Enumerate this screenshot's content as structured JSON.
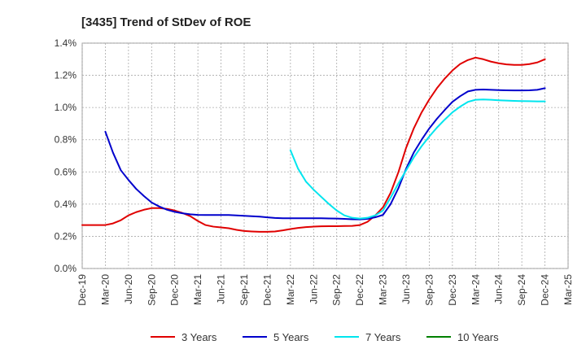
{
  "chart_data": {
    "type": "line",
    "title": "[3435]  Trend of StDev of ROE",
    "xlabel": "",
    "ylabel": "",
    "ylim": [
      0,
      1.4
    ],
    "yticks": [
      "0.0%",
      "0.2%",
      "0.4%",
      "0.6%",
      "0.8%",
      "1.0%",
      "1.2%",
      "1.4%"
    ],
    "xticks": [
      "Dec-19",
      "Mar-20",
      "Jun-20",
      "Sep-20",
      "Dec-20",
      "Mar-21",
      "Jun-21",
      "Sep-21",
      "Dec-21",
      "Mar-22",
      "Jun-22",
      "Sep-22",
      "Dec-22",
      "Mar-23",
      "Jun-23",
      "Sep-23",
      "Dec-23",
      "Mar-24",
      "Jun-24",
      "Sep-24",
      "Dec-24",
      "Mar-25"
    ],
    "grid": true,
    "legend_position": "bottom",
    "series": [
      {
        "name": "3 Years",
        "color": "#e00000",
        "points": [
          [
            0,
            0.27
          ],
          [
            0.33,
            0.27
          ],
          [
            0.67,
            0.27
          ],
          [
            1,
            0.27
          ],
          [
            1.33,
            0.28
          ],
          [
            1.67,
            0.3
          ],
          [
            2,
            0.33
          ],
          [
            2.33,
            0.35
          ],
          [
            2.67,
            0.365
          ],
          [
            3,
            0.375
          ],
          [
            3.33,
            0.375
          ],
          [
            3.67,
            0.37
          ],
          [
            4,
            0.36
          ],
          [
            4.33,
            0.345
          ],
          [
            4.67,
            0.325
          ],
          [
            5,
            0.295
          ],
          [
            5.33,
            0.27
          ],
          [
            5.67,
            0.26
          ],
          [
            6,
            0.255
          ],
          [
            6.33,
            0.25
          ],
          [
            6.67,
            0.24
          ],
          [
            7,
            0.233
          ],
          [
            7.33,
            0.23
          ],
          [
            7.67,
            0.228
          ],
          [
            8,
            0.228
          ],
          [
            8.33,
            0.23
          ],
          [
            8.67,
            0.237
          ],
          [
            9,
            0.245
          ],
          [
            9.33,
            0.252
          ],
          [
            9.67,
            0.257
          ],
          [
            10,
            0.26
          ],
          [
            10.33,
            0.262
          ],
          [
            10.67,
            0.263
          ],
          [
            11,
            0.263
          ],
          [
            11.33,
            0.264
          ],
          [
            11.67,
            0.265
          ],
          [
            12,
            0.27
          ],
          [
            12.33,
            0.29
          ],
          [
            12.67,
            0.33
          ],
          [
            13,
            0.38
          ],
          [
            13.33,
            0.47
          ],
          [
            13.67,
            0.6
          ],
          [
            14,
            0.75
          ],
          [
            14.33,
            0.87
          ],
          [
            14.67,
            0.97
          ],
          [
            15,
            1.05
          ],
          [
            15.33,
            1.12
          ],
          [
            15.67,
            1.18
          ],
          [
            16,
            1.23
          ],
          [
            16.33,
            1.27
          ],
          [
            16.67,
            1.295
          ],
          [
            17,
            1.31
          ],
          [
            17.33,
            1.3
          ],
          [
            17.67,
            1.285
          ],
          [
            18,
            1.275
          ],
          [
            18.33,
            1.268
          ],
          [
            18.67,
            1.265
          ],
          [
            19,
            1.265
          ],
          [
            19.33,
            1.27
          ],
          [
            19.67,
            1.28
          ],
          [
            20,
            1.3
          ]
        ]
      },
      {
        "name": "5 Years",
        "color": "#0000cc",
        "points": [
          [
            1,
            0.85
          ],
          [
            1.33,
            0.72
          ],
          [
            1.67,
            0.61
          ],
          [
            2,
            0.55
          ],
          [
            2.33,
            0.495
          ],
          [
            2.67,
            0.45
          ],
          [
            3,
            0.41
          ],
          [
            3.33,
            0.385
          ],
          [
            3.67,
            0.365
          ],
          [
            4,
            0.352
          ],
          [
            4.33,
            0.343
          ],
          [
            4.67,
            0.337
          ],
          [
            5,
            0.333
          ],
          [
            5.33,
            0.332
          ],
          [
            5.67,
            0.332
          ],
          [
            6,
            0.332
          ],
          [
            6.33,
            0.332
          ],
          [
            6.67,
            0.33
          ],
          [
            7,
            0.327
          ],
          [
            7.33,
            0.325
          ],
          [
            7.67,
            0.322
          ],
          [
            8,
            0.318
          ],
          [
            8.33,
            0.314
          ],
          [
            8.67,
            0.312
          ],
          [
            9,
            0.312
          ],
          [
            9.33,
            0.312
          ],
          [
            9.67,
            0.312
          ],
          [
            10,
            0.312
          ],
          [
            10.33,
            0.312
          ],
          [
            10.67,
            0.311
          ],
          [
            11,
            0.31
          ],
          [
            11.33,
            0.308
          ],
          [
            11.67,
            0.306
          ],
          [
            12,
            0.305
          ],
          [
            12.33,
            0.308
          ],
          [
            12.67,
            0.318
          ],
          [
            13,
            0.333
          ],
          [
            13.33,
            0.4
          ],
          [
            13.67,
            0.5
          ],
          [
            14,
            0.62
          ],
          [
            14.33,
            0.72
          ],
          [
            14.67,
            0.8
          ],
          [
            15,
            0.87
          ],
          [
            15.33,
            0.93
          ],
          [
            15.67,
            0.985
          ],
          [
            16,
            1.035
          ],
          [
            16.33,
            1.07
          ],
          [
            16.67,
            1.1
          ],
          [
            17,
            1.11
          ],
          [
            17.33,
            1.112
          ],
          [
            17.67,
            1.11
          ],
          [
            18,
            1.108
          ],
          [
            18.33,
            1.107
          ],
          [
            18.67,
            1.106
          ],
          [
            19,
            1.106
          ],
          [
            19.33,
            1.107
          ],
          [
            19.67,
            1.11
          ],
          [
            20,
            1.12
          ]
        ]
      },
      {
        "name": "7 Years",
        "color": "#00e5ee",
        "points": [
          [
            9,
            0.735
          ],
          [
            9.33,
            0.62
          ],
          [
            9.67,
            0.54
          ],
          [
            10,
            0.49
          ],
          [
            10.33,
            0.445
          ],
          [
            10.67,
            0.4
          ],
          [
            11,
            0.36
          ],
          [
            11.33,
            0.33
          ],
          [
            11.67,
            0.315
          ],
          [
            12,
            0.31
          ],
          [
            12.33,
            0.315
          ],
          [
            12.67,
            0.33
          ],
          [
            13,
            0.36
          ],
          [
            13.33,
            0.44
          ],
          [
            13.67,
            0.53
          ],
          [
            14,
            0.61
          ],
          [
            14.33,
            0.69
          ],
          [
            14.67,
            0.76
          ],
          [
            15,
            0.82
          ],
          [
            15.33,
            0.875
          ],
          [
            15.67,
            0.925
          ],
          [
            16,
            0.97
          ],
          [
            16.33,
            1.005
          ],
          [
            16.67,
            1.035
          ],
          [
            17,
            1.048
          ],
          [
            17.33,
            1.05
          ],
          [
            17.67,
            1.048
          ],
          [
            18,
            1.045
          ],
          [
            18.33,
            1.043
          ],
          [
            18.67,
            1.041
          ],
          [
            19,
            1.04
          ],
          [
            19.33,
            1.039
          ],
          [
            19.67,
            1.038
          ],
          [
            20,
            1.038
          ]
        ]
      },
      {
        "name": "10 Years",
        "color": "#008000",
        "points": []
      }
    ]
  }
}
